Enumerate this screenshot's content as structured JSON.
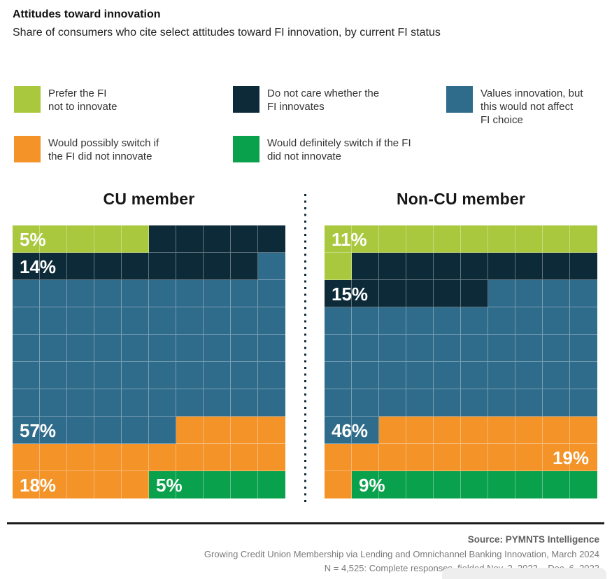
{
  "header": {
    "title": "Attitudes toward innovation",
    "subtitle": "Share of consumers who cite select attitudes toward FI innovation, by current FI status"
  },
  "legend": {
    "items": [
      {
        "name": "prefer-fi-not-to-innovate",
        "label": "Prefer the FI\nnot to innovate",
        "color": "#a9c83d"
      },
      {
        "name": "do-not-care-whether-fi-innovates",
        "label": "Do not care whether the\nFI innovates",
        "color": "#0d2a39"
      },
      {
        "name": "values-innovation-no-effect",
        "label": "Values innovation, but\nthis would not affect\nFI choice",
        "color": "#2f6b8a"
      },
      {
        "name": "would-possibly-switch",
        "label": "Would possibly switch if\nthe FI did not innovate",
        "color": "#f39328"
      },
      {
        "name": "would-definitely-switch",
        "label": "Would definitely switch if the FI\ndid not innovate",
        "color": "#0aa14c"
      }
    ]
  },
  "chart_data": {
    "type": "waffle",
    "grid_rows": 10,
    "grid_cols": 10,
    "unit_percent": 1,
    "categories": [
      "Prefer the FI not to innovate",
      "Do not care whether the FI innovates",
      "Values innovation, but this would not affect FI choice",
      "Would possibly switch if the FI did not innovate",
      "Would definitely switch if the FI did not innovate"
    ],
    "colors": [
      "#a9c83d",
      "#0d2a39",
      "#2f6b8a",
      "#f39328",
      "#0aa14c"
    ],
    "divider_color": "#0d2a39",
    "series": [
      {
        "name": "CU member",
        "values": [
          5,
          14,
          57,
          18,
          5
        ],
        "cell_counts": [
          5,
          14,
          57,
          19,
          5
        ],
        "labels": [
          {
            "text": "5%",
            "row": 1,
            "col": 1,
            "align": "left"
          },
          {
            "text": "14%",
            "row": 2,
            "col": 1,
            "align": "left"
          },
          {
            "text": "57%",
            "row": 8,
            "col": 1,
            "align": "left"
          },
          {
            "text": "18%",
            "row": 10,
            "col": 1,
            "align": "left"
          },
          {
            "text": "5%",
            "row": 10,
            "col": 6,
            "align": "left"
          }
        ]
      },
      {
        "name": "Non-CU member",
        "values": [
          11,
          15,
          46,
          19,
          9
        ],
        "cell_counts": [
          11,
          15,
          46,
          19,
          9
        ],
        "labels": [
          {
            "text": "11%",
            "row": 1,
            "col": 1,
            "align": "left"
          },
          {
            "text": "15%",
            "row": 3,
            "col": 1,
            "align": "left"
          },
          {
            "text": "46%",
            "row": 8,
            "col": 1,
            "align": "left"
          },
          {
            "text": "19%",
            "row": 9,
            "col": 10,
            "align": "right"
          },
          {
            "text": "9%",
            "row": 10,
            "col": 2,
            "align": "left"
          }
        ]
      }
    ]
  },
  "footer": {
    "source": "Source: PYMNTS Intelligence",
    "report": "Growing Credit Union Membership via Lending and Omnichannel Banking Innovation, March 2024",
    "sample": "N = 4,525: Complete responses, fielded Nov. 2, 2023 – Dec. 6, 2023"
  }
}
